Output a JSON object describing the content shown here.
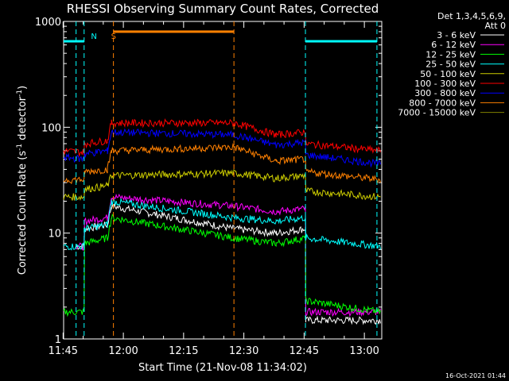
{
  "chart_data": {
    "type": "line",
    "title": "RHESSI Observing Summary Count Rates, Corrected",
    "xlabel": "Start Time (21-Nov-08 11:34:02)",
    "ylabel_main": "Corrected Count Rate (s",
    "ylabel_sup1": "-1",
    "ylabel_mid": " detector",
    "ylabel_sup2": "-1",
    "ylabel_end": ")",
    "y_scale": "log",
    "ylim": [
      1,
      1000
    ],
    "y_ticks": [
      1,
      10,
      100,
      1000
    ],
    "y_tick_labels": [
      "1",
      "10",
      "100",
      "1000"
    ],
    "xlim_minutes": [
      11.1,
      90.3
    ],
    "x_tick_minutes": [
      10.97,
      25.97,
      40.97,
      55.97,
      70.97,
      85.97
    ],
    "x_tick_labels": [
      "11:45",
      "12:00",
      "12:15",
      "12:30",
      "12:45",
      "13:00"
    ],
    "legend": {
      "placement": "right",
      "header1": "Det 1,3,4,5,6,9,",
      "header2": "Att 0",
      "entries": [
        {
          "label": "3 - 6 keV",
          "color": "#ffffff"
        },
        {
          "label": "6 - 12 keV",
          "color": "#ff00ff"
        },
        {
          "label": "12 - 25 keV",
          "color": "#00ff00"
        },
        {
          "label": "25 - 50 keV",
          "color": "#00ffff"
        },
        {
          "label": "50 - 100 keV",
          "color": "#cccc00"
        },
        {
          "label": "100 - 300 keV",
          "color": "#ff0000"
        },
        {
          "label": "300 - 800 keV",
          "color": "#0000ff"
        },
        {
          "label": "800 - 7000 keV",
          "color": "#ff8000"
        },
        {
          "label": "7000 - 15000 keV",
          "color": "#808000"
        }
      ]
    },
    "annotations": [
      {
        "text": "N",
        "color": "#00ffff",
        "x_minute": 17.9
      },
      {
        "text": "S",
        "color": "#ff8000",
        "x_minute": 22.9
      }
    ],
    "night_lines_minutes": [
      14.2,
      16.2,
      71.3,
      89.1
    ],
    "saa_lines_minutes": [
      23.5,
      53.5
    ],
    "saa_level": 800,
    "timestamp": "16-Oct-2021 01:44",
    "series": [
      {
        "name": "3 - 6 keV",
        "color": "#ffffff",
        "points": [
          [
            14.2,
            7.5
          ],
          [
            16.2,
            7.5
          ],
          [
            16.3,
            11
          ],
          [
            22,
            12
          ],
          [
            23,
            18
          ],
          [
            53.5,
            11
          ],
          [
            64,
            10
          ],
          [
            71.3,
            11
          ],
          [
            71.4,
            1.5
          ],
          [
            90,
            1.5
          ]
        ]
      },
      {
        "name": "6 - 12 keV",
        "color": "#ff00ff",
        "points": [
          [
            14.2,
            7.5
          ],
          [
            16.2,
            7.5
          ],
          [
            16.3,
            13
          ],
          [
            22,
            14
          ],
          [
            23,
            22
          ],
          [
            53.5,
            18
          ],
          [
            64,
            16
          ],
          [
            71.3,
            17
          ],
          [
            71.4,
            1.8
          ],
          [
            90,
            1.8
          ]
        ]
      },
      {
        "name": "12 - 25 keV",
        "color": "#00ff00",
        "points": [
          [
            11.1,
            1.8
          ],
          [
            16.2,
            1.8
          ],
          [
            16.3,
            8
          ],
          [
            22,
            9
          ],
          [
            23,
            14
          ],
          [
            53.5,
            9
          ],
          [
            64,
            8
          ],
          [
            71.3,
            9
          ],
          [
            71.4,
            2.3
          ],
          [
            90,
            1.8
          ]
        ]
      },
      {
        "name": "25 - 50 keV",
        "color": "#00ffff",
        "points": [
          [
            11.1,
            7.5
          ],
          [
            16.2,
            7.5
          ],
          [
            16.3,
            11
          ],
          [
            22,
            12
          ],
          [
            23,
            20
          ],
          [
            53.5,
            14
          ],
          [
            64,
            13
          ],
          [
            71.3,
            14
          ],
          [
            71.4,
            9
          ],
          [
            90,
            7.5
          ]
        ]
      },
      {
        "name": "50 - 100 keV",
        "color": "#cccc00",
        "points": [
          [
            11.1,
            22
          ],
          [
            16.2,
            22
          ],
          [
            16.3,
            26
          ],
          [
            22,
            28
          ],
          [
            23,
            35
          ],
          [
            53.5,
            37
          ],
          [
            64,
            33
          ],
          [
            71.3,
            35
          ],
          [
            71.4,
            25
          ],
          [
            90,
            22
          ]
        ]
      },
      {
        "name": "100 - 300 keV",
        "color": "#ff0000",
        "points": [
          [
            11.1,
            60
          ],
          [
            16.2,
            58
          ],
          [
            16.3,
            70
          ],
          [
            22,
            75
          ],
          [
            23,
            110
          ],
          [
            53.5,
            110
          ],
          [
            64,
            85
          ],
          [
            71.3,
            90
          ],
          [
            71.4,
            70
          ],
          [
            90,
            60
          ]
        ]
      },
      {
        "name": "300 - 800 keV",
        "color": "#0000ff",
        "points": [
          [
            11.1,
            52
          ],
          [
            16.2,
            50
          ],
          [
            16.3,
            56
          ],
          [
            22,
            60
          ],
          [
            23,
            90
          ],
          [
            53.5,
            85
          ],
          [
            64,
            68
          ],
          [
            71.3,
            72
          ],
          [
            71.4,
            55
          ],
          [
            90,
            45
          ]
        ]
      },
      {
        "name": "800 - 7000 keV",
        "color": "#ff8000",
        "points": [
          [
            11.1,
            32
          ],
          [
            16.2,
            32
          ],
          [
            16.3,
            38
          ],
          [
            22,
            40
          ],
          [
            23,
            60
          ],
          [
            53.5,
            65
          ],
          [
            64,
            48
          ],
          [
            71.3,
            50
          ],
          [
            71.4,
            38
          ],
          [
            90,
            32
          ]
        ]
      },
      {
        "name": "7000 - 15000 keV",
        "color": "#808000",
        "points": []
      }
    ]
  }
}
